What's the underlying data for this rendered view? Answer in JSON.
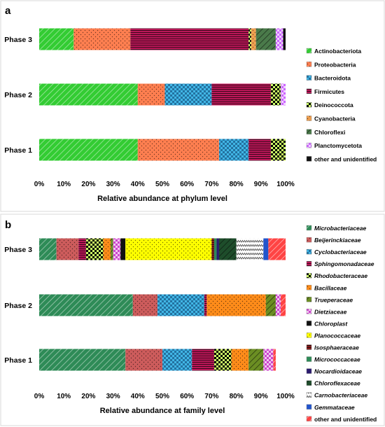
{
  "chart_data": [
    {
      "type": "bar",
      "orientation": "horizontal",
      "stacked": "percent",
      "panel_label": "a",
      "categories": [
        "Phase 3",
        "Phase 2",
        "Phase 1"
      ],
      "xlabel": "Relative abundance at phylum level",
      "xlim": [
        0,
        100
      ],
      "xticks": [
        "0%",
        "10%",
        "20%",
        "30%",
        "40%",
        "50%",
        "60%",
        "70%",
        "80%",
        "90%",
        "100%"
      ],
      "legend_position": "right",
      "grid": false,
      "series": [
        {
          "name": "Actinobacteriota",
          "color": "#33cc33",
          "pattern": "diagonal",
          "values": [
            14,
            40,
            40
          ]
        },
        {
          "name": "Proteobacteria",
          "color": "#ff7f50",
          "pattern": "dots",
          "values": [
            23,
            11,
            33
          ]
        },
        {
          "name": "Bacteroidota",
          "color": "#41b6e6",
          "pattern": "checks",
          "values": [
            0,
            19,
            12
          ]
        },
        {
          "name": "Firmicutes",
          "color": "#c2185b",
          "pattern": "hstripes",
          "values": [
            48,
            24,
            9
          ]
        },
        {
          "name": "Deinococcota",
          "color": "#ccff66",
          "pattern": "checker",
          "values": [
            1,
            4,
            6
          ]
        },
        {
          "name": "Cyanobacteria",
          "color": "#f0a050",
          "pattern": "dots",
          "values": [
            2,
            0,
            0
          ]
        },
        {
          "name": "Chloroflexi",
          "color": "#4a7a4a",
          "pattern": "diagonal-dark",
          "values": [
            8,
            0,
            0
          ]
        },
        {
          "name": "Planctomycetota",
          "color": "#cc66ff",
          "pattern": "checker-light",
          "values": [
            3,
            2,
            0
          ]
        },
        {
          "name": "other and unidentified",
          "color": "#111111",
          "pattern": "solid",
          "values": [
            1,
            0,
            0
          ]
        }
      ]
    },
    {
      "type": "bar",
      "orientation": "horizontal",
      "stacked": "percent",
      "panel_label": "b",
      "categories": [
        "Phase 3",
        "Phase 2",
        "Phase 1"
      ],
      "xlabel": "Relative abundance at family level",
      "xlim": [
        0,
        100
      ],
      "xticks": [
        "0%",
        "10%",
        "20%",
        "30%",
        "40%",
        "50%",
        "60%",
        "70%",
        "80%",
        "90%",
        "100%"
      ],
      "legend_position": "right",
      "legend_italic": true,
      "grid": false,
      "series": [
        {
          "name": "Microbacteriaceae",
          "color": "#2e8b57",
          "pattern": "diagonal",
          "values": [
            7,
            38,
            35
          ]
        },
        {
          "name": "Beijerinckiaceae",
          "color": "#cd5c5c",
          "pattern": "dots",
          "values": [
            9,
            10,
            15
          ]
        },
        {
          "name": "Cyclobacteriaceae",
          "color": "#41b6e6",
          "pattern": "checks",
          "values": [
            0,
            19,
            12
          ]
        },
        {
          "name": "Sphingomonadaceae",
          "color": "#c2185b",
          "pattern": "hstripes",
          "values": [
            3,
            1,
            9
          ]
        },
        {
          "name": "Rhodobacteraceae",
          "color": "#ccff66",
          "pattern": "checker",
          "values": [
            7,
            0,
            7
          ]
        },
        {
          "name": "Bacillaceae",
          "color": "#ff8c1a",
          "pattern": "dots",
          "values": [
            3,
            24,
            7
          ]
        },
        {
          "name": "Trueperaceae",
          "color": "#6b8e23",
          "pattern": "diagonal-dark",
          "values": [
            1,
            4,
            6
          ]
        },
        {
          "name": "Dietziaceae",
          "color": "#cc44cc",
          "pattern": "checker-light",
          "values": [
            3,
            2,
            4
          ]
        },
        {
          "name": "Chloroplast",
          "color": "#111111",
          "pattern": "solid",
          "values": [
            2,
            0,
            0
          ]
        },
        {
          "name": "Planococcaceae",
          "color": "#ffff00",
          "pattern": "dots",
          "values": [
            35,
            0,
            0
          ]
        },
        {
          "name": "Isosphaeraceae",
          "color": "#8b1a1a",
          "pattern": "hstripes",
          "values": [
            1,
            0,
            0
          ]
        },
        {
          "name": "Micrococcaceae",
          "color": "#2e8b57",
          "pattern": "solid",
          "values": [
            1,
            0,
            0
          ]
        },
        {
          "name": "Nocardioidaceae",
          "color": "#2a1b6e",
          "pattern": "solid",
          "values": [
            1,
            0,
            0
          ]
        },
        {
          "name": "Chloroflexaceae",
          "color": "#1e4d2b",
          "pattern": "diagonal-dark",
          "values": [
            7,
            0,
            0
          ]
        },
        {
          "name": "Carnobacteriaceae",
          "color": "#ffffff",
          "pattern": "zigzag",
          "values": [
            11,
            0,
            0
          ]
        },
        {
          "name": "Gemmataceae",
          "color": "#2255cc",
          "pattern": "solid",
          "values": [
            2,
            0,
            0
          ]
        },
        {
          "name": "other and unidentified",
          "color": "#ff4444",
          "pattern": "diag-red",
          "values": [
            7,
            2,
            1
          ]
        }
      ]
    }
  ]
}
